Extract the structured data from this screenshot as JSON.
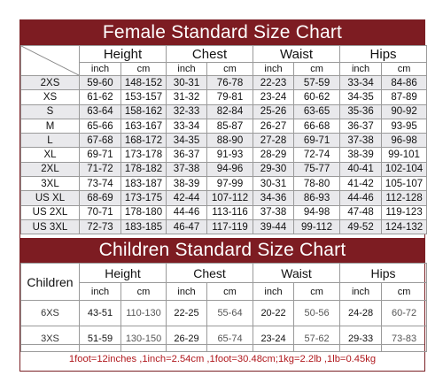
{
  "female": {
    "title": "Female Standard Size Chart",
    "groups": [
      "Height",
      "Chest",
      "Waist",
      "Hips"
    ],
    "units": [
      "inch",
      "cm"
    ],
    "rows": [
      {
        "size": "2XS",
        "values": [
          "59-60",
          "148-152",
          "30-31",
          "76-78",
          "22-23",
          "57-59",
          "33-34",
          "84-86"
        ]
      },
      {
        "size": "XS",
        "values": [
          "61-62",
          "153-157",
          "31-32",
          "79-81",
          "23-24",
          "60-62",
          "34-35",
          "87-89"
        ]
      },
      {
        "size": "S",
        "values": [
          "63-64",
          "158-162",
          "32-33",
          "82-84",
          "25-26",
          "63-65",
          "35-36",
          "90-92"
        ]
      },
      {
        "size": "M",
        "values": [
          "65-66",
          "163-167",
          "33-34",
          "85-87",
          "26-27",
          "66-68",
          "36-37",
          "93-95"
        ]
      },
      {
        "size": "L",
        "values": [
          "67-68",
          "168-172",
          "34-35",
          "88-90",
          "27-28",
          "69-71",
          "37-38",
          "96-98"
        ]
      },
      {
        "size": "XL",
        "values": [
          "69-71",
          "173-178",
          "36-37",
          "91-93",
          "28-29",
          "72-74",
          "38-39",
          "99-101"
        ]
      },
      {
        "size": "2XL",
        "values": [
          "71-72",
          "178-182",
          "37-38",
          "94-96",
          "29-30",
          "75-77",
          "40-41",
          "102-104"
        ]
      },
      {
        "size": "3XL",
        "values": [
          "73-74",
          "183-187",
          "38-39",
          "97-99",
          "30-31",
          "78-80",
          "41-42",
          "105-107"
        ]
      },
      {
        "size": "US XL",
        "values": [
          "68-69",
          "173-175",
          "42-44",
          "107-112",
          "34-36",
          "86-93",
          "44-46",
          "112-128"
        ]
      },
      {
        "size": "US 2XL",
        "values": [
          "70-71",
          "178-180",
          "44-46",
          "113-116",
          "37-38",
          "94-98",
          "47-48",
          "119-123"
        ]
      },
      {
        "size": "US 3XL",
        "values": [
          "72-73",
          "183-185",
          "46-47",
          "117-119",
          "39-44",
          "99-112",
          "49-52",
          "124-132"
        ]
      }
    ]
  },
  "children": {
    "title": "Children Standard Size Chart",
    "label": "Children",
    "groups": [
      "Height",
      "Chest",
      "Waist",
      "Hips"
    ],
    "units": [
      "inch",
      "cm"
    ],
    "rows": [
      {
        "size": "6XS",
        "values": [
          "43-51",
          "110-130",
          "22-25",
          "55-64",
          "20-22",
          "50-56",
          "24-28",
          "60-72"
        ]
      },
      {
        "size": "3XS",
        "values": [
          "51-59",
          "130-150",
          "26-29",
          "65-74",
          "23-24",
          "57-62",
          "29-33",
          "73-83"
        ]
      }
    ]
  },
  "conversion_note": "1foot=12inches ,1inch=2.54cm ,1foot=30.48cm;1kg=2.2lb ,1lb=0.45kg",
  "colors": {
    "title_bg": "#7d1c22",
    "note_text": "#b0191e",
    "stripe": "#e9e9ec"
  }
}
